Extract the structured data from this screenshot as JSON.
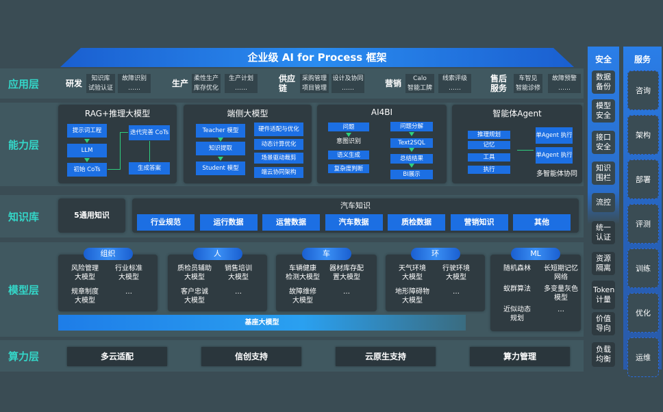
{
  "title": "企业级 AI for Process 框架",
  "layers": [
    "应用层",
    "能力层",
    "知识库",
    "模型层",
    "算力层"
  ],
  "app": [
    {
      "name": "研发",
      "items": [
        "知识库",
        "故障识别",
        "试验认证",
        "……"
      ]
    },
    {
      "name": "生产",
      "items": [
        "柔性生产",
        "生产计划",
        "库存优化",
        "……"
      ]
    },
    {
      "name": "供应链",
      "items": [
        "采购管理",
        "设计及协同",
        "项目管理",
        "……"
      ]
    },
    {
      "name": "营销",
      "items": [
        "Calo",
        "线索评级",
        "智能工牌",
        "……"
      ]
    },
    {
      "name": "售后服务",
      "items": [
        "车智见",
        "故障预警",
        "智能诊修",
        "……"
      ]
    }
  ],
  "capability": {
    "rag": {
      "title": "RAG+推理大模型",
      "items": [
        "提示词工程",
        "LLM",
        "初始 CoTs",
        "迭代完善 CoTs",
        "生成答案"
      ]
    },
    "edge": {
      "title": "端侧大模型",
      "chain": [
        "Teacher 模型",
        "知识提取",
        "Student 模型"
      ],
      "items": [
        "硬件适配与优化",
        "动态计算优化",
        "场景驱动裁剪",
        "端云协同架构"
      ]
    },
    "ai4bi": {
      "title": "AI4BI",
      "left": [
        "问题",
        "意图识别",
        "语义生成",
        "复杂度判断"
      ],
      "right": [
        "问题分解",
        "Text2SQL",
        "总结结果",
        "BI展示"
      ]
    },
    "agent": {
      "title": "智能体Agent",
      "items": [
        "推理规划",
        "记忆",
        "工具",
        "执行"
      ],
      "exec": [
        "单Agent 执行",
        "单Agent 执行"
      ],
      "footer": "多智能体协同"
    }
  },
  "knowledge": {
    "general": "5通用知识",
    "auto_title": "汽车知识",
    "tags": [
      "行业规范",
      "运行数据",
      "运营数据",
      "汽车数据",
      "质检数据",
      "营销知识",
      "其他"
    ]
  },
  "models": [
    {
      "pill": "组织",
      "items": [
        "风险管理 大模型",
        "行业标准 大模型",
        "规章制度 大模型",
        "…"
      ]
    },
    {
      "pill": "人",
      "items": [
        "质检员辅助 大模型",
        "销售培训 大模型",
        "客户忠诚 大模型",
        "…"
      ]
    },
    {
      "pill": "车",
      "items": [
        "车辆健康 检测大模型",
        "器材库存配 置大模型",
        "故障维修 大模型",
        "…"
      ]
    },
    {
      "pill": "环",
      "items": [
        "天气环境 大模型",
        "行驶环境 大模型",
        "地形障碍物 大模型",
        "…"
      ]
    },
    {
      "pill": "ML",
      "items": [
        "随机森林",
        "长短期记忆 网络",
        "蚁群算法",
        "多变量灰色 模型",
        "近似动态 规划",
        "…"
      ]
    }
  ],
  "base_model": "基座大模型",
  "compute": [
    "多云适配",
    "信创支持",
    "云原生支持",
    "算力管理"
  ],
  "security": {
    "title": "安全",
    "items": [
      "数据 备份",
      "模型 安全",
      "接口 安全",
      "知识 围栏",
      "流控",
      "统一 认证",
      "资源 隔离",
      "Token 计量",
      "价值 导向",
      "负载 均衡"
    ]
  },
  "services": {
    "title": "服务",
    "items": [
      "咨询",
      "架构",
      "部署",
      "评测",
      "训练",
      "优化",
      "运维"
    ]
  },
  "colors": {
    "accent": "#1c6fe3",
    "label": "#34d6c8",
    "arrow": "#2fd07f"
  }
}
